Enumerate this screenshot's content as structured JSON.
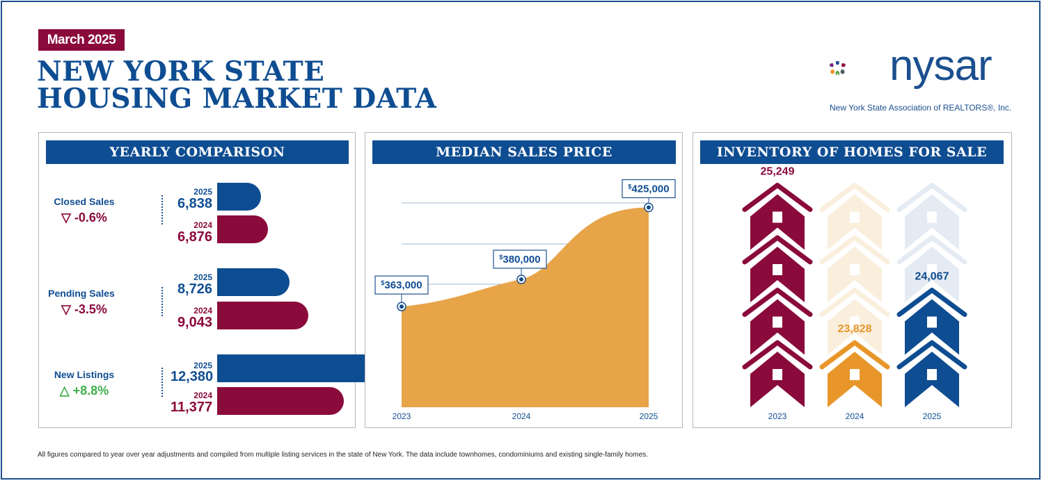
{
  "header": {
    "date_badge": "March 2025",
    "title_line1": "NEW YORK STATE",
    "title_line2": "HOUSING MARKET DATA"
  },
  "logo": {
    "wordmark": "nysar",
    "subtitle": "New York State Association of REALTORS®, Inc.",
    "icon": "house-star-icon"
  },
  "colors": {
    "navy": "#0f4d92",
    "maroon": "#8a0a3b",
    "orange": "#e8962a",
    "green": "#3fae49"
  },
  "panels": {
    "yearly": "YEARLY COMPARISON",
    "median": "MEDIAN SALES PRICE",
    "inventory": "INVENTORY OF HOMES FOR SALE"
  },
  "yearly": {
    "metrics": [
      {
        "label": "Closed Sales",
        "change": "-0.6%",
        "direction": "down",
        "year_a": "2025",
        "value_a": "6,838",
        "year_b": "2024",
        "value_b": "6,876"
      },
      {
        "label": "Pending Sales",
        "change": "-3.5%",
        "direction": "down",
        "year_a": "2025",
        "value_a": "8,726",
        "year_b": "2024",
        "value_b": "9,043"
      },
      {
        "label": "New Listings",
        "change": "+8.8%",
        "direction": "up",
        "year_a": "2025",
        "value_a": "12,380",
        "year_b": "2024",
        "value_b": "11,377"
      }
    ]
  },
  "median": {
    "labels": [
      "363,000",
      "380,000",
      "425,000"
    ],
    "years": [
      "2023",
      "2024",
      "2025"
    ]
  },
  "inventory": {
    "labels": [
      "25,249",
      "23,828",
      "24,067"
    ],
    "years": [
      "2023",
      "2024",
      "2025"
    ]
  },
  "footnote": "All figures compared to year over year adjustments and compiled from multiple listing services in the state of New York.  The data include townhomes, condominiums and existing single-family homes.",
  "chart_data": [
    {
      "type": "bar",
      "title": "YEARLY COMPARISON",
      "categories": [
        "Closed Sales",
        "Pending Sales",
        "New Listings"
      ],
      "series": [
        {
          "name": "2025",
          "values": [
            6838,
            8726,
            12380
          ]
        },
        {
          "name": "2024",
          "values": [
            6876,
            9043,
            11377
          ]
        }
      ],
      "annotations": [
        "-0.6%",
        "-3.5%",
        "+8.8%"
      ]
    },
    {
      "type": "area",
      "title": "MEDIAN SALES PRICE",
      "x": [
        "2023",
        "2024",
        "2025"
      ],
      "values": [
        363000,
        380000,
        425000
      ],
      "grid": true
    },
    {
      "type": "bar",
      "title": "INVENTORY OF HOMES FOR SALE",
      "categories": [
        "2023",
        "2024",
        "2025"
      ],
      "values": [
        25249,
        23828,
        24067
      ]
    }
  ]
}
